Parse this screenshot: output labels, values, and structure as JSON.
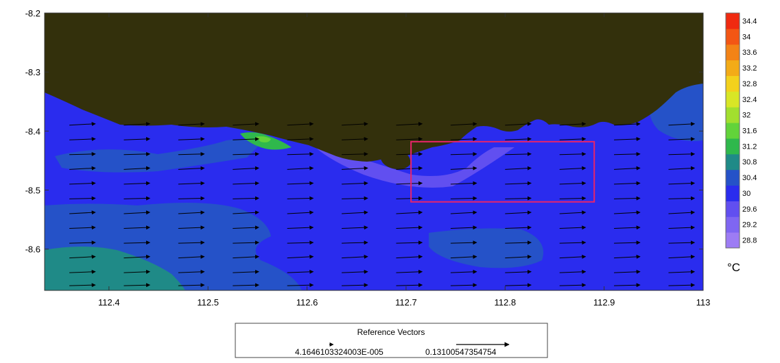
{
  "chart_data": {
    "type": "heatmap",
    "subtype": "contour-with-vector-field",
    "xlim": [
      112.335,
      113.0
    ],
    "ylim": [
      -8.67,
      -8.2
    ],
    "x_ticks": [
      112.4,
      112.5,
      112.6,
      112.7,
      112.8,
      112.9,
      113
    ],
    "x_tick_labels": [
      "112.4",
      "112.5",
      "112.6",
      "112.7",
      "112.8",
      "112.9",
      "113"
    ],
    "y_ticks": [
      -8.2,
      -8.3,
      -8.4,
      -8.5,
      -8.6
    ],
    "y_tick_labels": [
      "-8.2",
      "-8.3",
      "-8.4",
      "-8.5",
      "-8.6"
    ],
    "colorbar": {
      "levels": [
        28.8,
        29.2,
        29.6,
        30,
        30.4,
        30.8,
        31.2,
        31.6,
        32,
        32.4,
        32.8,
        33.2,
        33.6,
        34,
        34.4
      ],
      "labels": [
        "28.8",
        "29.2",
        "29.6",
        "30",
        "30.4",
        "30.8",
        "31.2",
        "31.6",
        "32",
        "32.4",
        "32.8",
        "33.2",
        "33.6",
        "34",
        "34.4"
      ],
      "colors": [
        "#9d7cf4",
        "#7f66f2",
        "#614ff0",
        "#2a2cee",
        "#2552c8",
        "#1f8a87",
        "#2fb84c",
        "#62d33a",
        "#a2df2e",
        "#d8e626",
        "#f3d11c",
        "#f3ab17",
        "#f38316",
        "#f35614",
        "#f02a10"
      ],
      "unit": "°C"
    },
    "land_color": "#33300c",
    "box": {
      "x0": 112.705,
      "x1": 112.89,
      "y0": -8.52,
      "y1": -8.418,
      "color": "#e8246a"
    },
    "vectors": {
      "direction": "eastward",
      "x_positions": [
        112.36,
        112.415,
        112.47,
        112.525,
        112.58,
        112.635,
        112.69,
        112.745,
        112.8,
        112.855,
        112.91,
        112.965
      ],
      "y_positions": [
        -8.39,
        -8.415,
        -8.44,
        -8.465,
        -8.49,
        -8.515,
        -8.54,
        -8.565,
        -8.59,
        -8.615,
        -8.64,
        -8.662
      ]
    },
    "reference_vectors": {
      "title": "Reference Vectors",
      "small": "4.1646103324003E-005",
      "large": "0.13100547354754"
    }
  }
}
